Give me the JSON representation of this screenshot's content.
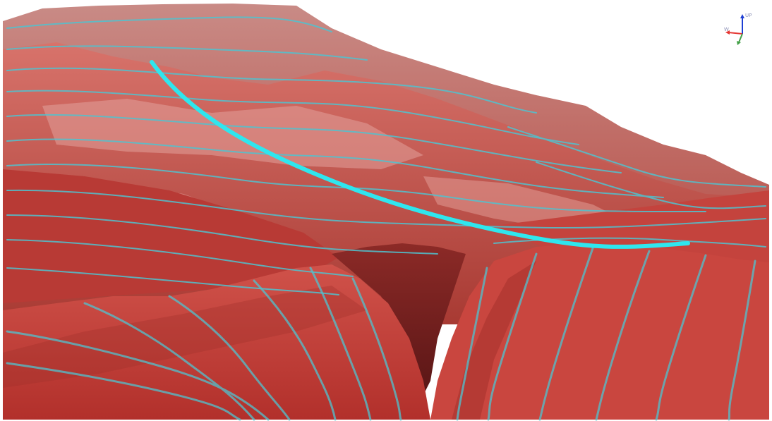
{
  "viewport": {
    "view": "3d-terrain-perspective",
    "background": "#ffffff",
    "terrain_colors": {
      "dark": "#6e1f1f",
      "base": "#c3403a",
      "mid": "#d9635c",
      "light": "#e9a29c",
      "highlight": "#f3d2cf"
    },
    "contour_color": "#4fc3d0",
    "profile_line_color": "#2fe6ee"
  },
  "axis_gizmo": {
    "up_label": "UP",
    "x_label": "W",
    "x_color": "#e53935",
    "y_color": "#43a047",
    "z_color": "#1e3fd4"
  }
}
